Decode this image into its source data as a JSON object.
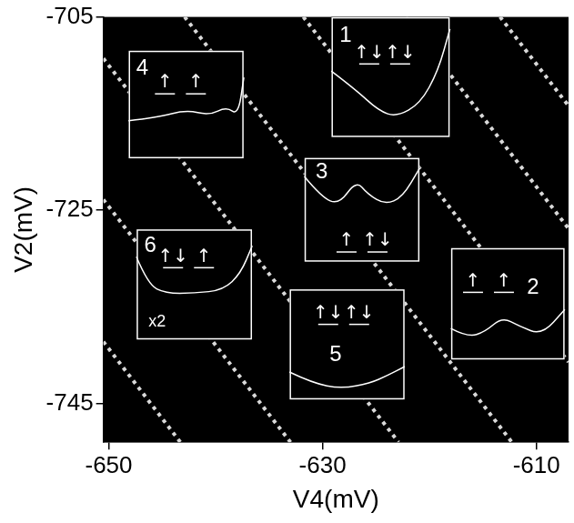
{
  "chart_data": {
    "type": "scatter",
    "x_label": "V4(mV)",
    "y_label": "V2(mV)",
    "xlim": [
      -650.5,
      -607
    ],
    "ylim": [
      -749,
      -705
    ],
    "xticks": [
      -650,
      -630,
      -610
    ],
    "yticks": [
      -705,
      -725,
      -745
    ],
    "grid": false,
    "series": [
      {
        "x": [
          -650.5,
          -643.3
        ],
        "values": [
          -738.6,
          -749
        ],
        "color": "#d9d9d9",
        "line_style": "dotted"
      },
      {
        "x": [
          -650.5,
          -633.0
        ],
        "values": [
          -723.9,
          -749
        ],
        "color": "#d9d9d9",
        "line_style": "dotted"
      },
      {
        "x": [
          -650.5,
          -622.9
        ],
        "values": [
          -709.3,
          -749
        ],
        "color": "#d9d9d9",
        "line_style": "dotted"
      },
      {
        "x": [
          -642.9,
          -612.3
        ],
        "values": [
          -705,
          -749
        ],
        "color": "#d9d9d9",
        "line_style": "dotted"
      },
      {
        "x": [
          -631.8,
          -607
        ],
        "values": [
          -705,
          -740.7
        ],
        "color": "#d9d9d9",
        "line_style": "dotted"
      },
      {
        "x": [
          -622.2,
          -607
        ],
        "values": [
          -705,
          -726.9
        ],
        "color": "#d9d9d9",
        "line_style": "dotted"
      },
      {
        "x": [
          -613.4,
          -607
        ],
        "values": [
          -705,
          -714.2
        ],
        "color": "#d9d9d9",
        "line_style": "dotted"
      }
    ],
    "annotations": [
      {
        "label": "1",
        "spins": [
          "↑↓",
          "↑↓"
        ]
      },
      {
        "label": "2",
        "spins": [
          "↑",
          "↑"
        ]
      },
      {
        "label": "3",
        "spins": [
          "↑",
          "↑↓"
        ]
      },
      {
        "label": "4",
        "spins": [
          "↑",
          "↑"
        ]
      },
      {
        "label": "5",
        "spins": [
          "↑↓",
          "↑↓"
        ]
      },
      {
        "label": "6",
        "spins": [
          "↑↓",
          "↑"
        ],
        "note": "x2"
      }
    ]
  }
}
